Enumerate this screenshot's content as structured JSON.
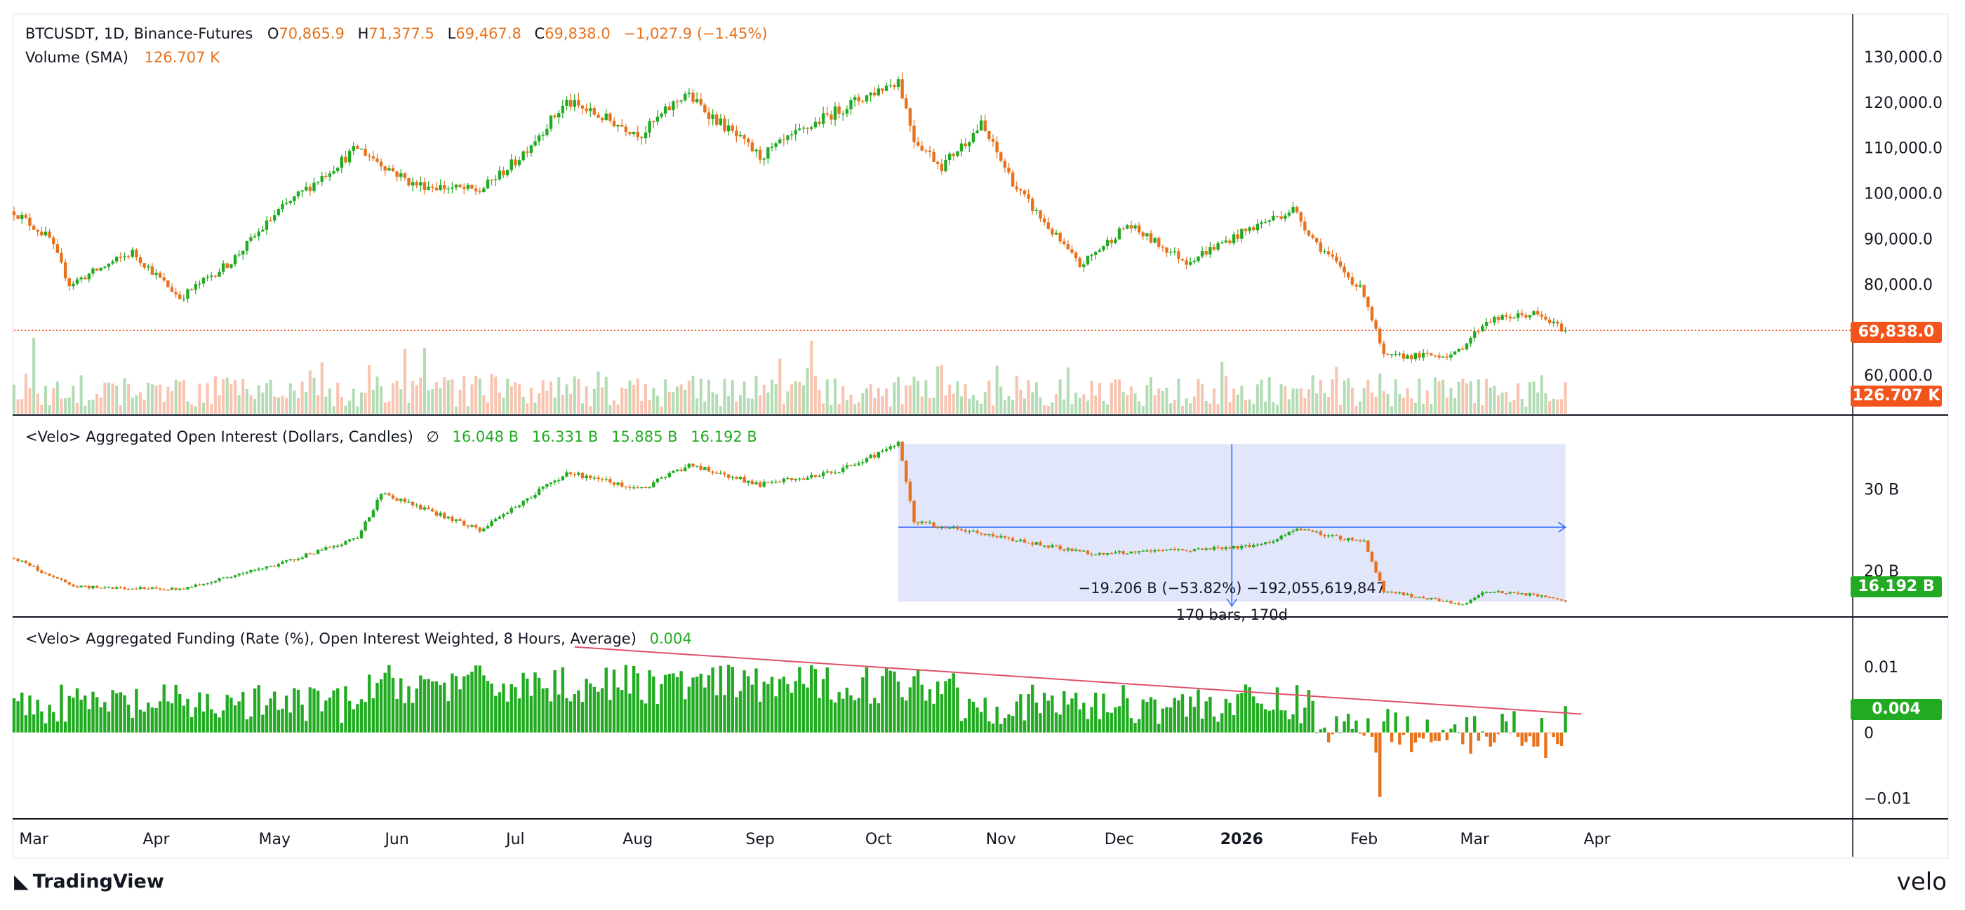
{
  "header": {
    "symbol_line": "BTCUSDT, 1D, Binance-Futures",
    "o_label": "O",
    "o_value": "70,865.9",
    "h_label": "H",
    "h_value": "71,377.5",
    "l_label": "L",
    "l_value": "69,467.8",
    "c_label": "C",
    "c_value": "69,838.0",
    "change": "−1,027.9 (−1.45%)",
    "volume_label": "Volume (SMA)",
    "volume_value": "126.707 K"
  },
  "oi_panel": {
    "title": "<Velo> Aggregated Open Interest (Dollars, Candles)",
    "symbol": "∅",
    "values": [
      "16.048 B",
      "16.331 B",
      "15.885 B",
      "16.192 B"
    ],
    "last_tag": "16.192 B",
    "measure_text": "−19.206 B (−53.82%) −192,055,619,847",
    "measure_bars": "170 bars, 170d"
  },
  "funding_panel": {
    "title": "<Velo> Aggregated Funding (Rate (%), Open Interest Weighted, 8 Hours, Average)",
    "value": "0.004",
    "last_tag": "0.004"
  },
  "price_tags": {
    "last_price": "69,838.0",
    "volume": "126.707 K"
  },
  "branding": {
    "left": "TradingView",
    "right": "velo"
  },
  "colors": {
    "up": "#22ab22",
    "down": "#e8711c",
    "accent": "#f2541b",
    "measure_fill": "#dfe3fb",
    "measure_line": "#2962ff",
    "trend": "#e0506a"
  },
  "chart_data": [
    {
      "type": "candlestick",
      "title": "BTCUSDT, 1D, Binance-Futures",
      "y_axis_ticks": [
        "130,000.0",
        "120,000.0",
        "110,000.0",
        "100,000.0",
        "90,000.0",
        "80,000.0",
        "60,000.0"
      ],
      "ylim": [
        58000,
        132000
      ],
      "x_ticks": [
        "Mar",
        "Apr",
        "May",
        "Jun",
        "Jul",
        "Aug",
        "Sep",
        "Oct",
        "Nov",
        "Dec",
        "2026",
        "Feb",
        "Mar",
        "Apr"
      ],
      "anchors": [
        {
          "x": "2025-02-24",
          "y": 96000
        },
        {
          "x": "2025-03-05",
          "y": 90000
        },
        {
          "x": "2025-03-10",
          "y": 80000
        },
        {
          "x": "2025-03-26",
          "y": 87000
        },
        {
          "x": "2025-04-07",
          "y": 77000
        },
        {
          "x": "2025-04-20",
          "y": 85000
        },
        {
          "x": "2025-05-02",
          "y": 96000
        },
        {
          "x": "2025-05-22",
          "y": 110000
        },
        {
          "x": "2025-06-05",
          "y": 102000
        },
        {
          "x": "2025-06-22",
          "y": 100500
        },
        {
          "x": "2025-07-01",
          "y": 107000
        },
        {
          "x": "2025-07-14",
          "y": 120000
        },
        {
          "x": "2025-08-02",
          "y": 113000
        },
        {
          "x": "2025-08-13",
          "y": 122000
        },
        {
          "x": "2025-09-01",
          "y": 108000
        },
        {
          "x": "2025-09-18",
          "y": 117000
        },
        {
          "x": "2025-10-06",
          "y": 125000
        },
        {
          "x": "2025-10-10",
          "y": 112000
        },
        {
          "x": "2025-10-17",
          "y": 106000
        },
        {
          "x": "2025-10-27",
          "y": 115000
        },
        {
          "x": "2025-11-05",
          "y": 101000
        },
        {
          "x": "2025-11-21",
          "y": 84000
        },
        {
          "x": "2025-12-03",
          "y": 93000
        },
        {
          "x": "2025-12-18",
          "y": 85000
        },
        {
          "x": "2026-01-05",
          "y": 93000
        },
        {
          "x": "2026-01-14",
          "y": 96500
        },
        {
          "x": "2026-01-20",
          "y": 89000
        },
        {
          "x": "2026-02-01",
          "y": 78000
        },
        {
          "x": "2026-02-06",
          "y": 64000
        },
        {
          "x": "2026-02-24",
          "y": 64500
        },
        {
          "x": "2026-03-04",
          "y": 72000
        },
        {
          "x": "2026-03-16",
          "y": 73500
        },
        {
          "x": "2026-03-24",
          "y": 69838
        }
      ],
      "last_price": 69838.0,
      "volume_sma": "126.707 K"
    },
    {
      "type": "candlestick",
      "title": "<Velo> Aggregated Open Interest (Dollars, Candles)",
      "y_axis_ticks": [
        "30 B",
        "20 B"
      ],
      "ylim": [
        15000000000,
        37000000000
      ],
      "anchors": [
        {
          "x": "2025-02-24",
          "y": 21500000000
        },
        {
          "x": "2025-03-11",
          "y": 18000000000
        },
        {
          "x": "2025-04-07",
          "y": 17700000000
        },
        {
          "x": "2025-04-30",
          "y": 20500000000
        },
        {
          "x": "2025-05-22",
          "y": 24000000000
        },
        {
          "x": "2025-05-28",
          "y": 29500000000
        },
        {
          "x": "2025-06-22",
          "y": 25000000000
        },
        {
          "x": "2025-07-14",
          "y": 32000000000
        },
        {
          "x": "2025-08-02",
          "y": 30000000000
        },
        {
          "x": "2025-08-14",
          "y": 33000000000
        },
        {
          "x": "2025-09-01",
          "y": 30500000000
        },
        {
          "x": "2025-09-20",
          "y": 32000000000
        },
        {
          "x": "2025-10-06",
          "y": 35500000000
        },
        {
          "x": "2025-10-10",
          "y": 26000000000
        },
        {
          "x": "2025-11-25",
          "y": 22000000000
        },
        {
          "x": "2026-01-05",
          "y": 23000000000
        },
        {
          "x": "2026-01-15",
          "y": 25000000000
        },
        {
          "x": "2026-02-01",
          "y": 23500000000
        },
        {
          "x": "2026-02-06",
          "y": 17500000000
        },
        {
          "x": "2026-02-26",
          "y": 15800000000
        },
        {
          "x": "2026-03-04",
          "y": 17500000000
        },
        {
          "x": "2026-03-16",
          "y": 17000000000
        },
        {
          "x": "2026-03-24",
          "y": 16192000000
        }
      ],
      "ohlc_last": {
        "o": "16.048 B",
        "h": "16.331 B",
        "l": "15.885 B",
        "c": "16.192 B"
      },
      "measure": {
        "from": "2025-10-06",
        "to": "2026-03-24",
        "change": "−19.206 B",
        "percent": "−53.82%",
        "bars": "170 bars, 170d"
      }
    },
    {
      "type": "bar",
      "title": "<Velo> Aggregated Funding (Rate (%), Open Interest Weighted, 8 Hours, Average)",
      "y_axis_ticks": [
        "0.01",
        "0",
        "−0.01"
      ],
      "ylim": [
        -0.011,
        0.015
      ],
      "trendline": [
        {
          "x": "2025-07-16",
          "y": 0.013
        },
        {
          "x": "2026-03-28",
          "y": 0.0028
        }
      ],
      "last_value": 0.004
    }
  ]
}
